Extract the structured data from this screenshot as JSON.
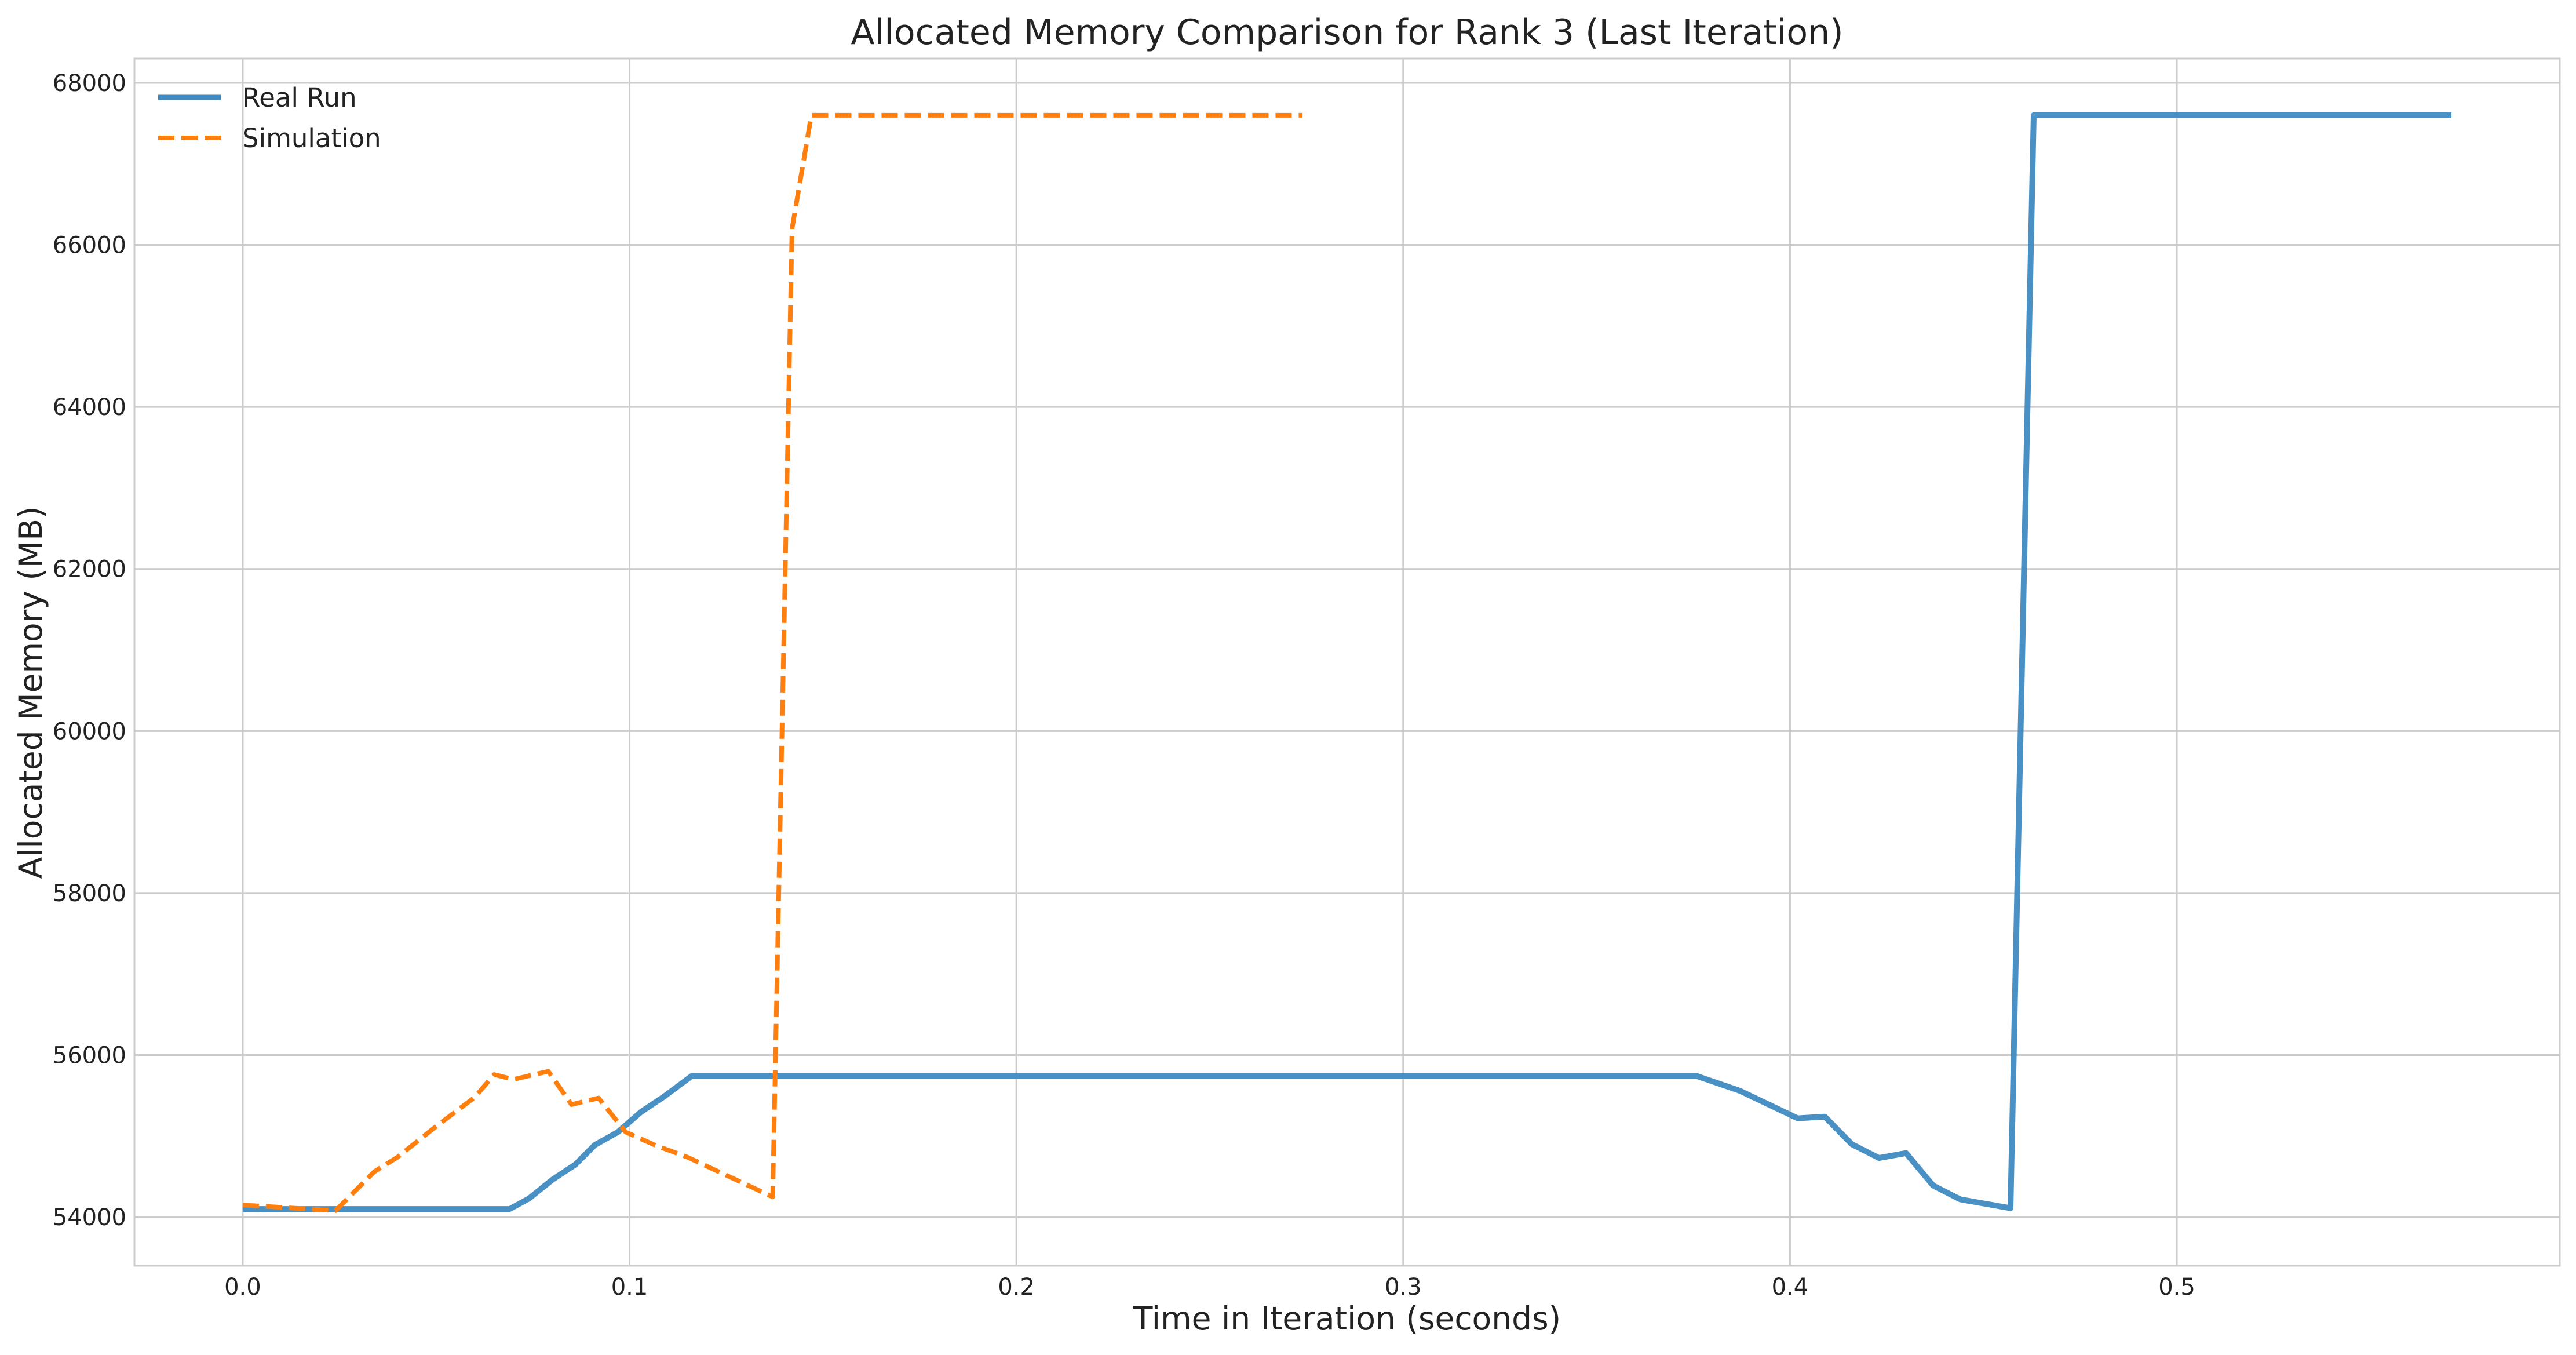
{
  "chart_data": {
    "type": "line",
    "title": "Allocated Memory Comparison for Rank 3 (Last Iteration)",
    "xlabel": "Time in Iteration (seconds)",
    "ylabel": "Allocated Memory (MB)",
    "xlim": [
      -0.028,
      0.599
    ],
    "ylim": [
      53400,
      68300
    ],
    "xticks": [
      0.0,
      0.1,
      0.2,
      0.3,
      0.4,
      0.5
    ],
    "xtick_labels": [
      "0.0",
      "0.1",
      "0.2",
      "0.3",
      "0.4",
      "0.5"
    ],
    "yticks": [
      54000,
      56000,
      58000,
      60000,
      62000,
      64000,
      66000,
      68000
    ],
    "ytick_labels": [
      "54000",
      "56000",
      "58000",
      "60000",
      "62000",
      "64000",
      "66000",
      "68000"
    ],
    "grid": true,
    "legend_position": "top-left",
    "series": [
      {
        "name": "Real Run",
        "color": "#3f8ac2",
        "style": "solid",
        "points": [
          [
            0.0,
            54100
          ],
          [
            0.069,
            54100
          ],
          [
            0.074,
            54230
          ],
          [
            0.08,
            54460
          ],
          [
            0.086,
            54650
          ],
          [
            0.091,
            54890
          ],
          [
            0.097,
            55050
          ],
          [
            0.103,
            55300
          ],
          [
            0.109,
            55490
          ],
          [
            0.116,
            55740
          ],
          [
            0.2,
            55740
          ],
          [
            0.3,
            55740
          ],
          [
            0.376,
            55740
          ],
          [
            0.387,
            55560
          ],
          [
            0.402,
            55220
          ],
          [
            0.409,
            55240
          ],
          [
            0.416,
            54900
          ],
          [
            0.423,
            54730
          ],
          [
            0.43,
            54790
          ],
          [
            0.437,
            54390
          ],
          [
            0.444,
            54220
          ],
          [
            0.457,
            54110
          ],
          [
            0.463,
            67600
          ],
          [
            0.5,
            67600
          ],
          [
            0.571,
            67600
          ]
        ]
      },
      {
        "name": "Simulation",
        "color": "#ff7f0e",
        "style": "dashed",
        "points": [
          [
            0.0,
            54150
          ],
          [
            0.01,
            54120
          ],
          [
            0.024,
            54080
          ],
          [
            0.034,
            54560
          ],
          [
            0.04,
            54740
          ],
          [
            0.05,
            55120
          ],
          [
            0.06,
            55480
          ],
          [
            0.065,
            55760
          ],
          [
            0.07,
            55700
          ],
          [
            0.079,
            55800
          ],
          [
            0.085,
            55390
          ],
          [
            0.092,
            55470
          ],
          [
            0.099,
            55050
          ],
          [
            0.107,
            54880
          ],
          [
            0.115,
            54740
          ],
          [
            0.137,
            54250
          ],
          [
            0.142,
            66200
          ],
          [
            0.147,
            67600
          ],
          [
            0.2,
            67600
          ],
          [
            0.274,
            67600
          ]
        ]
      }
    ]
  }
}
